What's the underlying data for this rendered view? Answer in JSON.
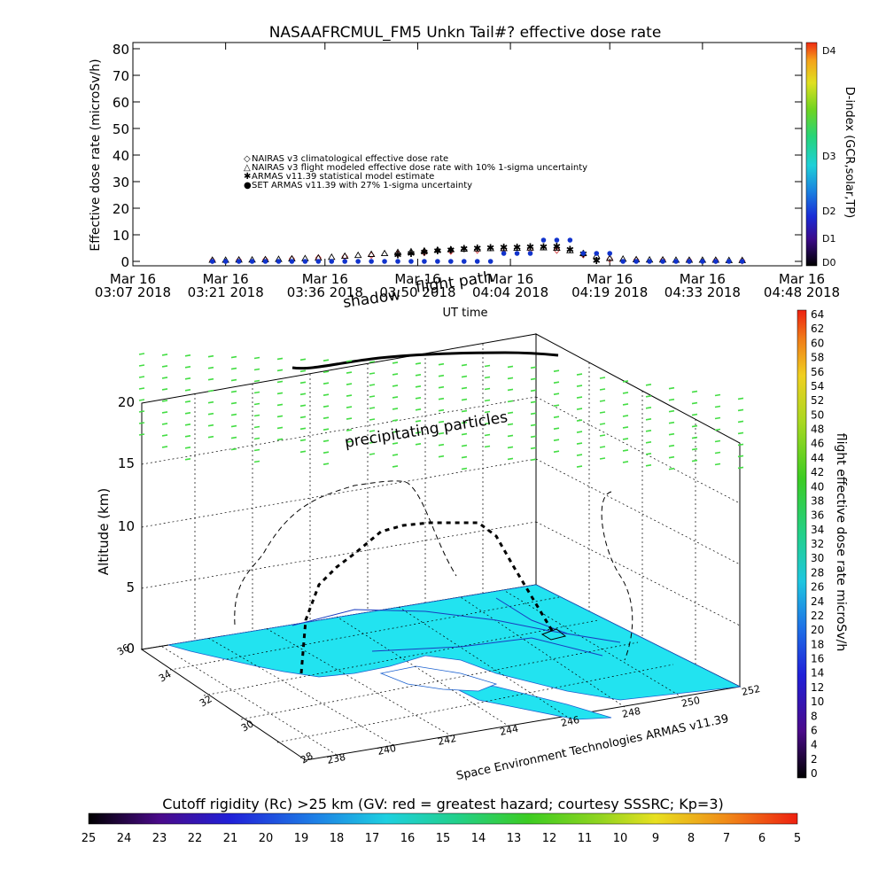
{
  "top_title": "NASAAFRCMUL_FM5 Unkn Tail#? effective dose rate",
  "top_ylabel": "Effective dose rate (microSv/h)",
  "top_xlabel": "UT time",
  "dindex_label": "D-index (GCR,solar,TP)",
  "dindex_ticks": [
    "D4",
    "D3",
    "D2",
    "D1",
    "D0"
  ],
  "legend": [
    {
      "symbol": "◇",
      "color": "#d04040",
      "text": "NAIRAS v3 climatological effective dose rate"
    },
    {
      "symbol": "△",
      "color": "#000000",
      "text": "NAIRAS v3 flight modeled effective dose rate with 10% 1-sigma uncertainty"
    },
    {
      "symbol": "✱",
      "color": "#33cc33",
      "text": "ARMAS v11.39 statistical model estimate"
    },
    {
      "symbol": "●",
      "color": "#1133cc",
      "text": "SET ARMAS v11.39 with 27% 1-sigma uncertainty"
    }
  ],
  "annotations": {
    "shadow": "shadow",
    "flight_path": "flight path",
    "precipitating": "precipitating particles",
    "credit": "Space Environment Technologies ARMAS v11.39"
  },
  "plot3d": {
    "altitude_label": "Altitude (km)",
    "altitude_ticks": [
      "0",
      "5",
      "10",
      "15",
      "20"
    ],
    "lat_ticks": [
      "36",
      "34",
      "32",
      "30",
      "28"
    ],
    "lon_ticks": [
      "238",
      "240",
      "242",
      "244",
      "246",
      "248",
      "250",
      "252"
    ]
  },
  "right_colorbar": {
    "label": "flight effective dose rate microSv/h",
    "ticks": [
      "64",
      "62",
      "60",
      "58",
      "56",
      "54",
      "52",
      "50",
      "48",
      "46",
      "44",
      "42",
      "40",
      "38",
      "36",
      "34",
      "32",
      "30",
      "28",
      "26",
      "24",
      "22",
      "20",
      "18",
      "16",
      "14",
      "12",
      "10",
      "8",
      "6",
      "4",
      "2",
      "0"
    ]
  },
  "bottom_colorbar": {
    "label": "Cutoff rigidity (Rc) >25 km (GV: red = greatest hazard; courtesy SSSRC; Kp=3)",
    "ticks": [
      "25",
      "24",
      "23",
      "22",
      "21",
      "20",
      "19",
      "18",
      "17",
      "16",
      "15",
      "14",
      "13",
      "12",
      "11",
      "10",
      "9",
      "8",
      "7",
      "6",
      "5"
    ]
  },
  "chart_data": {
    "type": "scatter",
    "title": "NASAAFRCMUL_FM5 Unkn Tail#? effective dose rate",
    "ylabel": "Effective dose rate (microSv/h)",
    "xlabel": "UT time",
    "ylim": [
      0,
      80
    ],
    "xlim_minutes": [
      0,
      101
    ],
    "x_ticks": [
      {
        "date": "Mar 16",
        "time": "03:07 2018",
        "m": 0
      },
      {
        "date": "Mar 16",
        "time": "03:21 2018",
        "m": 14
      },
      {
        "date": "Mar 16",
        "time": "03:36 2018",
        "m": 29
      },
      {
        "date": "Mar 16",
        "time": "03:50 2018",
        "m": 43
      },
      {
        "date": "Mar 16",
        "time": "04:04 2018",
        "m": 57
      },
      {
        "date": "Mar 16",
        "time": "04:19 2018",
        "m": 72
      },
      {
        "date": "Mar 16",
        "time": "04:33 2018",
        "m": 86
      },
      {
        "date": "Mar 16",
        "time": "04:48 2018",
        "m": 101
      }
    ],
    "y_ticks": [
      0,
      10,
      20,
      30,
      40,
      50,
      60,
      70,
      80
    ],
    "series": [
      {
        "name": "NAIRAS v3 climatological effective dose rate",
        "marker": "diamond",
        "color": "#d04040",
        "x": [
          12,
          16,
          20,
          24,
          28,
          32,
          36,
          40,
          44,
          48,
          52,
          56,
          60,
          64,
          68,
          72,
          76,
          80,
          84,
          88,
          92
        ],
        "y": [
          0.3,
          0.4,
          0.6,
          0.9,
          1.3,
          1.8,
          2.3,
          2.8,
          3.3,
          3.8,
          4.2,
          4.4,
          4.5,
          4.2,
          2.5,
          0.9,
          0.5,
          0.4,
          0.3,
          0.3,
          0.2
        ]
      },
      {
        "name": "NAIRAS v3 flight modeled effective dose rate with 10% 1-sigma uncertainty",
        "marker": "triangle",
        "color": "#000000",
        "x": [
          12,
          14,
          16,
          18,
          20,
          22,
          24,
          26,
          28,
          30,
          32,
          34,
          36,
          38,
          40,
          42,
          44,
          46,
          48,
          50,
          52,
          54,
          56,
          58,
          60,
          62,
          64,
          66,
          68,
          70,
          72,
          74,
          76,
          78,
          80,
          82,
          84,
          86,
          88,
          90,
          92
        ],
        "y": [
          0.3,
          0.3,
          0.4,
          0.4,
          0.5,
          0.6,
          0.8,
          0.9,
          1.1,
          1.4,
          1.8,
          2.1,
          2.5,
          2.8,
          3.2,
          3.5,
          3.8,
          4.1,
          4.3,
          4.5,
          4.6,
          4.7,
          4.7,
          4.8,
          4.9,
          5.0,
          4.8,
          3.9,
          2.8,
          1.9,
          1.0,
          0.7,
          0.5,
          0.4,
          0.4,
          0.3,
          0.3,
          0.3,
          0.3,
          0.2,
          0.2
        ]
      },
      {
        "name": "ARMAS v11.39 statistical model estimate",
        "marker": "star",
        "color": "#33cc33",
        "x": [
          40,
          42,
          44,
          46,
          48,
          50,
          52,
          54,
          56,
          58,
          60,
          62,
          64,
          66,
          68,
          70
        ],
        "y": [
          2.5,
          3.0,
          3.5,
          4.0,
          4.4,
          4.8,
          5.0,
          5.2,
          5.3,
          5.4,
          5.5,
          5.5,
          5.6,
          4.5,
          2.8,
          0.3
        ]
      },
      {
        "name": "SET ARMAS v11.39 with 27% 1-sigma uncertainty",
        "marker": "dot",
        "color": "#1133cc",
        "x": [
          12,
          14,
          16,
          18,
          20,
          22,
          24,
          26,
          28,
          30,
          32,
          34,
          36,
          38,
          40,
          42,
          44,
          46,
          48,
          50,
          52,
          54,
          56,
          58,
          60,
          62,
          64,
          66,
          68,
          70,
          72,
          74,
          76,
          78,
          80,
          82,
          84,
          86,
          88,
          90,
          92
        ],
        "y": [
          0,
          0,
          0,
          0,
          0,
          0,
          0,
          0,
          0,
          0,
          0,
          0,
          0,
          0,
          0,
          0,
          0,
          0,
          0,
          0,
          0,
          0,
          3,
          3,
          3,
          8,
          8,
          8,
          3,
          3,
          3,
          0,
          0,
          0,
          0,
          0,
          0,
          0,
          0,
          0,
          0
        ]
      }
    ]
  }
}
